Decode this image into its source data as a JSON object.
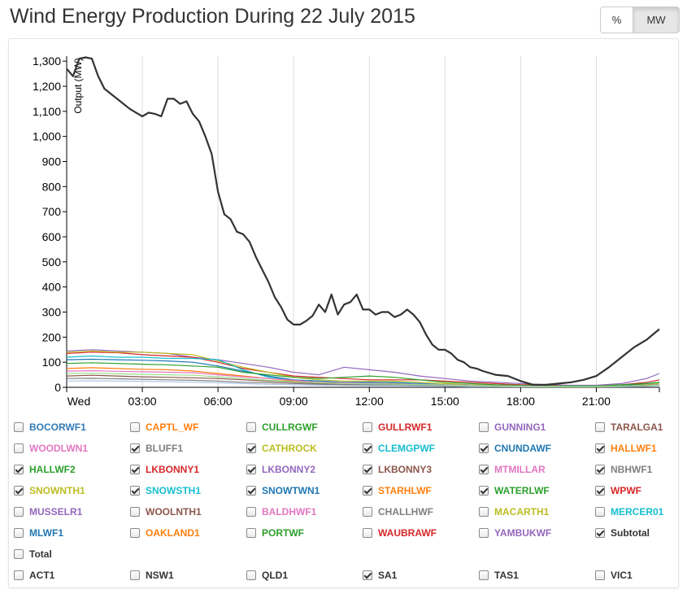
{
  "title": "Wind Energy Production During 22 July 2015",
  "unit_toggle": {
    "percent_label": "%",
    "mw_label": "MW",
    "active": "MW"
  },
  "chart_data": {
    "type": "line",
    "title": "Wind Energy Production During 22 July 2015",
    "xlabel": "",
    "ylabel": "Output (MW)",
    "ylim": [
      0,
      1320
    ],
    "yticks": [
      0,
      100,
      200,
      300,
      400,
      500,
      600,
      700,
      800,
      900,
      1000,
      1100,
      1200,
      1300
    ],
    "ytick_labels": [
      "0",
      "100",
      "200",
      "300",
      "400",
      "500",
      "600",
      "700",
      "800",
      "900",
      "1,000",
      "1,100",
      "1,200",
      "1,300"
    ],
    "xlim": [
      0,
      23.5
    ],
    "xticks": [
      0,
      3,
      6,
      9,
      12,
      15,
      18,
      21
    ],
    "xtick_labels": [
      "Wed",
      "03:00",
      "06:00",
      "09:00",
      "12:00",
      "15:00",
      "18:00",
      "21:00"
    ],
    "grid": true,
    "series": [
      {
        "name": "Subtotal",
        "color": "#333333",
        "width": 2.2,
        "x": [
          0,
          0.25,
          0.5,
          0.75,
          1,
          1.25,
          1.5,
          2,
          2.5,
          2.75,
          3,
          3.25,
          3.5,
          3.75,
          4,
          4.25,
          4.5,
          4.75,
          5,
          5.25,
          5.5,
          5.75,
          6,
          6.25,
          6.5,
          6.75,
          7,
          7.25,
          7.5,
          7.75,
          8,
          8.25,
          8.5,
          8.75,
          9,
          9.25,
          9.5,
          9.75,
          10,
          10.25,
          10.5,
          10.75,
          11,
          11.25,
          11.5,
          11.75,
          12,
          12.25,
          12.5,
          12.75,
          13,
          13.25,
          13.5,
          13.75,
          14,
          14.25,
          14.5,
          14.75,
          15,
          15.25,
          15.5,
          15.75,
          16,
          16.25,
          16.5,
          17,
          17.5,
          18,
          18.5,
          19,
          19.5,
          20,
          20.5,
          21,
          21.5,
          22,
          22.5,
          23,
          23.5
        ],
        "y": [
          1270,
          1240,
          1310,
          1315,
          1310,
          1240,
          1190,
          1150,
          1110,
          1095,
          1080,
          1095,
          1090,
          1080,
          1150,
          1150,
          1130,
          1140,
          1090,
          1060,
          1000,
          930,
          780,
          690,
          670,
          620,
          610,
          580,
          520,
          470,
          420,
          360,
          320,
          270,
          250,
          250,
          265,
          285,
          330,
          300,
          370,
          290,
          330,
          340,
          370,
          310,
          310,
          290,
          300,
          300,
          280,
          290,
          310,
          290,
          260,
          210,
          170,
          150,
          150,
          135,
          110,
          100,
          80,
          75,
          65,
          50,
          45,
          25,
          10,
          10,
          15,
          20,
          30,
          45,
          80,
          120,
          160,
          190,
          232
        ]
      },
      {
        "name": "LKBONNY2",
        "color": "#9467bd",
        "width": 1.2,
        "x": [
          0,
          1,
          2,
          3,
          4,
          5,
          6,
          7,
          8,
          9,
          10,
          11,
          12,
          13,
          14,
          15,
          16,
          17,
          18,
          19,
          20,
          21,
          22,
          23,
          23.5
        ],
        "y": [
          145,
          150,
          145,
          140,
          135,
          120,
          110,
          95,
          80,
          60,
          50,
          80,
          70,
          60,
          45,
          35,
          25,
          20,
          15,
          10,
          8,
          8,
          15,
          35,
          55
        ]
      },
      {
        "name": "LKBONNY1",
        "color": "#d62728",
        "width": 1.2,
        "x": [
          0,
          1,
          2,
          3,
          4,
          5,
          6,
          7,
          8,
          9,
          10,
          11,
          12,
          13,
          14,
          15,
          16,
          17,
          18,
          19,
          20,
          21,
          22,
          23,
          23.5
        ],
        "y": [
          135,
          140,
          138,
          130,
          125,
          120,
          100,
          75,
          60,
          45,
          40,
          35,
          30,
          30,
          30,
          25,
          20,
          15,
          10,
          8,
          5,
          5,
          10,
          20,
          30
        ]
      },
      {
        "name": "CATHROCK",
        "color": "#bcbd22",
        "width": 1.2,
        "x": [
          0,
          1,
          2,
          3,
          4,
          5,
          6,
          7,
          8,
          9,
          10,
          11,
          12,
          13,
          14,
          15,
          16,
          17,
          18,
          19,
          20,
          21,
          22,
          23,
          23.5
        ],
        "y": [
          140,
          145,
          140,
          140,
          135,
          130,
          105,
          80,
          60,
          40,
          30,
          25,
          25,
          25,
          20,
          15,
          10,
          8,
          5,
          5,
          5,
          5,
          8,
          10,
          15
        ]
      },
      {
        "name": "CLEMGPWF",
        "color": "#17becf",
        "width": 1.2,
        "x": [
          0,
          1,
          2,
          3,
          4,
          5,
          6,
          7,
          8,
          9,
          10,
          11,
          12,
          13,
          14,
          15,
          16,
          17,
          18,
          19,
          20,
          21,
          22,
          23,
          23.5
        ],
        "y": [
          120,
          125,
          120,
          120,
          115,
          115,
          110,
          70,
          40,
          30,
          25,
          20,
          20,
          20,
          15,
          10,
          8,
          5,
          5,
          5,
          5,
          5,
          8,
          15,
          20
        ]
      },
      {
        "name": "SNOWSTH1",
        "color": "#1f77b4",
        "width": 1.2,
        "x": [
          0,
          1,
          2,
          3,
          4,
          5,
          6,
          7,
          8,
          9,
          10,
          11,
          12,
          13,
          14,
          15,
          16,
          17,
          18,
          19,
          20,
          21,
          22,
          23,
          23.5
        ],
        "y": [
          110,
          112,
          110,
          108,
          105,
          100,
          85,
          65,
          45,
          30,
          25,
          20,
          20,
          18,
          15,
          10,
          8,
          5,
          5,
          5,
          5,
          5,
          8,
          15,
          20
        ]
      },
      {
        "name": "WATERLWF",
        "color": "#2ca02c",
        "width": 1.2,
        "x": [
          0,
          1,
          2,
          3,
          4,
          5,
          6,
          7,
          8,
          9,
          10,
          11,
          12,
          13,
          14,
          15,
          16,
          17,
          18,
          19,
          20,
          21,
          22,
          23,
          23.5
        ],
        "y": [
          95,
          98,
          95,
          92,
          90,
          85,
          80,
          60,
          50,
          40,
          35,
          40,
          45,
          40,
          30,
          20,
          15,
          10,
          8,
          5,
          5,
          5,
          10,
          15,
          20
        ]
      },
      {
        "name": "STARHLWF",
        "color": "#ff7f0e",
        "width": 1.2,
        "x": [
          0,
          1,
          2,
          3,
          4,
          5,
          6,
          7,
          8,
          9,
          10,
          11,
          12,
          13,
          14,
          15,
          16,
          17,
          18,
          19,
          20,
          21,
          22,
          23,
          23.5
        ],
        "y": [
          75,
          78,
          75,
          72,
          70,
          65,
          55,
          45,
          35,
          25,
          20,
          15,
          15,
          15,
          10,
          8,
          5,
          5,
          5,
          3,
          3,
          3,
          5,
          8,
          10
        ]
      },
      {
        "name": "HALLWF2",
        "color": "#e377c2",
        "width": 1.2,
        "x": [
          0,
          1,
          2,
          3,
          4,
          5,
          6,
          7,
          8,
          9,
          10,
          11,
          12,
          13,
          14,
          15,
          16,
          17,
          18,
          19,
          20,
          21,
          22,
          23,
          23.5
        ],
        "y": [
          65,
          66,
          64,
          62,
          60,
          58,
          50,
          42,
          35,
          28,
          20,
          18,
          16,
          14,
          12,
          10,
          8,
          6,
          5,
          4,
          3,
          3,
          5,
          8,
          12
        ]
      },
      {
        "name": "SNOWTWN1",
        "color": "#8c564b",
        "width": 1.2,
        "x": [
          0,
          1,
          2,
          3,
          4,
          5,
          6,
          7,
          8,
          9,
          10,
          11,
          12,
          13,
          14,
          15,
          16,
          17,
          18,
          19,
          20,
          21,
          22,
          23,
          23.5
        ],
        "y": [
          45,
          48,
          45,
          42,
          40,
          38,
          35,
          30,
          25,
          20,
          15,
          12,
          10,
          10,
          8,
          6,
          5,
          4,
          3,
          3,
          3,
          3,
          5,
          8,
          10
        ]
      },
      {
        "name": "WPWF",
        "color": "#7f7f7f",
        "width": 1.2,
        "x": [
          0,
          1,
          2,
          3,
          4,
          5,
          6,
          7,
          8,
          9,
          10,
          11,
          12,
          13,
          14,
          15,
          16,
          17,
          18,
          19,
          20,
          21,
          22,
          23,
          23.5
        ],
        "y": [
          35,
          36,
          34,
          32,
          30,
          28,
          25,
          20,
          18,
          15,
          12,
          10,
          10,
          10,
          8,
          6,
          5,
          4,
          3,
          3,
          3,
          3,
          4,
          6,
          8
        ]
      },
      {
        "name": "NBHWF1",
        "color": "#aec7e8",
        "width": 1.2,
        "x": [
          0,
          1,
          2,
          3,
          4,
          5,
          6,
          7,
          8,
          9,
          10,
          11,
          12,
          13,
          14,
          15,
          16,
          17,
          18,
          19,
          20,
          21,
          22,
          23,
          23.5
        ],
        "y": [
          25,
          26,
          25,
          24,
          22,
          20,
          18,
          15,
          12,
          10,
          8,
          7,
          6,
          6,
          5,
          4,
          3,
          3,
          2,
          2,
          2,
          2,
          3,
          4,
          6
        ]
      },
      {
        "name": "SNOWNTH1",
        "color": "#98df8a",
        "width": 1.2,
        "x": [
          0,
          1,
          2,
          3,
          4,
          5,
          6,
          7,
          8,
          9,
          10,
          11,
          12,
          13,
          14,
          15,
          16,
          17,
          18,
          19,
          20,
          21,
          22,
          23,
          23.5
        ],
        "y": [
          55,
          56,
          54,
          52,
          50,
          48,
          42,
          35,
          28,
          22,
          18,
          15,
          14,
          13,
          11,
          9,
          7,
          5,
          4,
          3,
          3,
          3,
          5,
          7,
          10
        ]
      }
    ]
  },
  "legend_rows": [
    [
      {
        "label": "BOCORWF1",
        "color": "#337ab7",
        "checked": false
      },
      {
        "label": "CAPTL_WF",
        "color": "#ff7f0e",
        "checked": false
      },
      {
        "label": "CULLRGWF",
        "color": "#2ca02c",
        "checked": false
      },
      {
        "label": "GULLRWF1",
        "color": "#d62728",
        "checked": false
      },
      {
        "label": "GUNNING1",
        "color": "#9467bd",
        "checked": false
      },
      {
        "label": "TARALGA1",
        "color": "#8c564b",
        "checked": false
      }
    ],
    [
      {
        "label": "WOODLWN1",
        "color": "#e377c2",
        "checked": false
      },
      {
        "label": "BLUFF1",
        "color": "#7f7f7f",
        "checked": true
      },
      {
        "label": "CATHROCK",
        "color": "#bcbd22",
        "checked": true
      },
      {
        "label": "CLEMGPWF",
        "color": "#17becf",
        "checked": true
      },
      {
        "label": "CNUNDAWF",
        "color": "#1f77b4",
        "checked": true
      },
      {
        "label": "HALLWF1",
        "color": "#ff7f0e",
        "checked": true
      }
    ],
    [
      {
        "label": "HALLWF2",
        "color": "#2ca02c",
        "checked": true
      },
      {
        "label": "LKBONNY1",
        "color": "#d62728",
        "checked": true
      },
      {
        "label": "LKBONNY2",
        "color": "#9467bd",
        "checked": true
      },
      {
        "label": "LKBONNY3",
        "color": "#8c564b",
        "checked": true
      },
      {
        "label": "MTMILLAR",
        "color": "#e377c2",
        "checked": true
      },
      {
        "label": "NBHWF1",
        "color": "#7f7f7f",
        "checked": true
      }
    ],
    [
      {
        "label": "SNOWNTH1",
        "color": "#bcbd22",
        "checked": true
      },
      {
        "label": "SNOWSTH1",
        "color": "#17becf",
        "checked": true
      },
      {
        "label": "SNOWTWN1",
        "color": "#1f77b4",
        "checked": true
      },
      {
        "label": "STARHLWF",
        "color": "#ff7f0e",
        "checked": true
      },
      {
        "label": "WATERLWF",
        "color": "#2ca02c",
        "checked": true
      },
      {
        "label": "WPWF",
        "color": "#d62728",
        "checked": true
      }
    ],
    [
      {
        "label": "MUSSELR1",
        "color": "#9467bd",
        "checked": false
      },
      {
        "label": "WOOLNTH1",
        "color": "#8c564b",
        "checked": false
      },
      {
        "label": "BALDHWF1",
        "color": "#e377c2",
        "checked": false
      },
      {
        "label": "CHALLHWF",
        "color": "#7f7f7f",
        "checked": false
      },
      {
        "label": "MACARTH1",
        "color": "#bcbd22",
        "checked": false
      },
      {
        "label": "MERCER01",
        "color": "#17becf",
        "checked": false
      }
    ],
    [
      {
        "label": "MLWF1",
        "color": "#1f77b4",
        "checked": false
      },
      {
        "label": "OAKLAND1",
        "color": "#ff7f0e",
        "checked": false
      },
      {
        "label": "PORTWF",
        "color": "#2ca02c",
        "checked": false
      },
      {
        "label": "WAUBRAWF",
        "color": "#d62728",
        "checked": false
      },
      {
        "label": "YAMBUKWF",
        "color": "#9467bd",
        "checked": false
      },
      {
        "label": "Subtotal",
        "color": "#333333",
        "checked": true
      }
    ],
    [
      {
        "label": "Total",
        "color": "#333333",
        "checked": false
      }
    ],
    [
      {
        "label": "ACT1",
        "color": "#333333",
        "checked": false
      },
      {
        "label": "NSW1",
        "color": "#333333",
        "checked": false
      },
      {
        "label": "QLD1",
        "color": "#333333",
        "checked": false
      },
      {
        "label": "SA1",
        "color": "#333333",
        "checked": true
      },
      {
        "label": "TAS1",
        "color": "#333333",
        "checked": false
      },
      {
        "label": "VIC1",
        "color": "#333333",
        "checked": false
      }
    ]
  ]
}
